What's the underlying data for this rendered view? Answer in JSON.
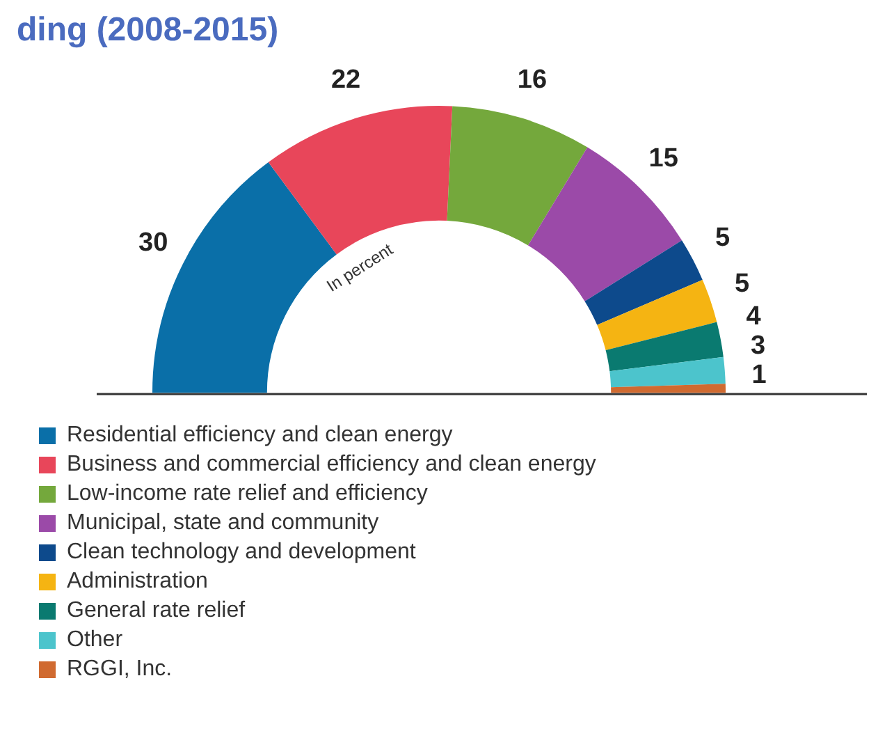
{
  "chart_data": {
    "type": "donut",
    "title": "ding (2008-2015)",
    "categories": [
      "Residential efficiency and clean energy",
      "Business and commercial efficiency and clean energy",
      "Low-income rate relief and efficiency",
      "Municipal, state and community",
      "Clean technology and development",
      "Administration",
      "General rate relief",
      "Other",
      "RGGI, Inc."
    ],
    "values": [
      30,
      22,
      16,
      15,
      5,
      5,
      4,
      3,
      1
    ],
    "colors": [
      "#0a6fa8",
      "#e8465a",
      "#74a83c",
      "#9b4aa8",
      "#0d4a8c",
      "#f5b412",
      "#0a7a70",
      "#4cc4cc",
      "#d06a30"
    ],
    "annotations": [
      "In percent"
    ],
    "data_labels": true,
    "legend": "bottom"
  }
}
